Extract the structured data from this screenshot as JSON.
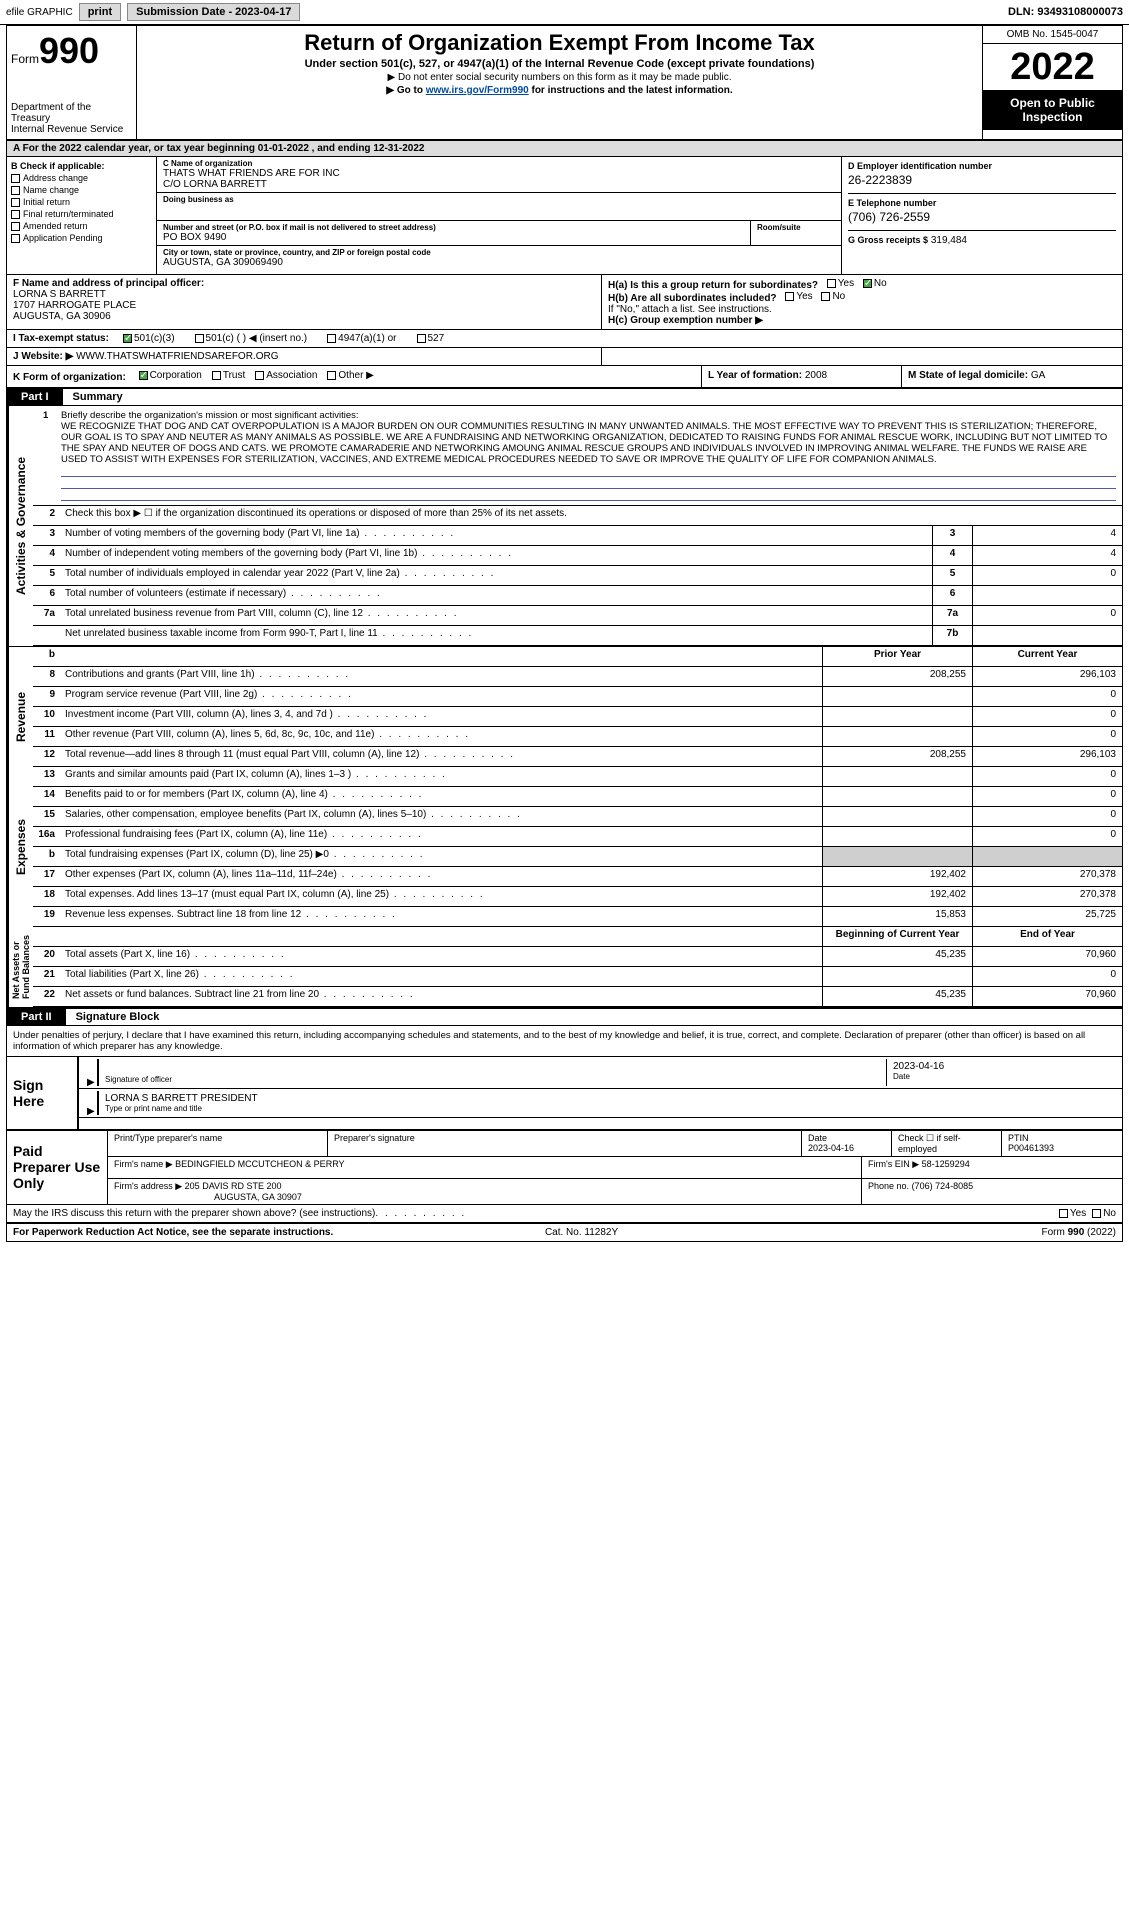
{
  "topbar": {
    "efile": "efile GRAPHIC",
    "print": "print",
    "subdate_lbl": "Submission Date - 2023-04-17",
    "dln": "DLN: 93493108000073"
  },
  "header": {
    "form_prefix": "Form",
    "form_num": "990",
    "dept": "Department of the Treasury\nInternal Revenue Service",
    "title": "Return of Organization Exempt From Income Tax",
    "sub": "Under section 501(c), 527, or 4947(a)(1) of the Internal Revenue Code (except private foundations)",
    "note1": "▶ Do not enter social security numbers on this form as it may be made public.",
    "note2_pre": "▶ Go to ",
    "note2_link": "www.irs.gov/Form990",
    "note2_post": " for instructions and the latest information.",
    "omb": "OMB No. 1545-0047",
    "year": "2022",
    "open": "Open to Public Inspection"
  },
  "secA": "A For the 2022 calendar year, or tax year beginning 01-01-2022   , and ending 12-31-2022",
  "boxB": {
    "label": "B Check if applicable:",
    "items": [
      "Address change",
      "Name change",
      "Initial return",
      "Final return/terminated",
      "Amended return",
      "Application Pending"
    ]
  },
  "boxC": {
    "name_lbl": "C Name of organization",
    "name": "THATS WHAT FRIENDS ARE FOR INC",
    "care": "C/O LORNA BARRETT",
    "dba_lbl": "Doing business as",
    "addr_lbl": "Number and street (or P.O. box if mail is not delivered to street address)",
    "addr": "PO BOX 9490",
    "suite_lbl": "Room/suite",
    "city_lbl": "City or town, state or province, country, and ZIP or foreign postal code",
    "city": "AUGUSTA, GA  309069490"
  },
  "boxD": {
    "lbl": "D Employer identification number",
    "val": "26-2223839"
  },
  "boxE": {
    "lbl": "E Telephone number",
    "val": "(706) 726-2559"
  },
  "boxG": {
    "lbl": "G Gross receipts $",
    "val": "319,484"
  },
  "boxF": {
    "lbl": "F  Name and address of principal officer:",
    "name": "LORNA S BARRETT",
    "addr1": "1707 HARROGATE PLACE",
    "addr2": "AUGUSTA, GA  30906"
  },
  "boxH": {
    "a": "H(a)  Is this a group return for subordinates?",
    "b": "H(b)  Are all subordinates included?",
    "b_note": "If \"No,\" attach a list. See instructions.",
    "c": "H(c)  Group exemption number ▶",
    "yes": "Yes",
    "no": "No"
  },
  "rowI": {
    "lbl": "I   Tax-exempt status:",
    "opts": [
      "501(c)(3)",
      "501(c) (  ) ◀ (insert no.)",
      "4947(a)(1) or",
      "527"
    ]
  },
  "rowJ": {
    "lbl": "J   Website: ▶",
    "val": "WWW.THATSWHATFRIENDSAREFOR.ORG"
  },
  "rowK": {
    "lbl": "K Form of organization:",
    "opts": [
      "Corporation",
      "Trust",
      "Association",
      "Other ▶"
    ]
  },
  "rowL": {
    "lbl": "L Year of formation:",
    "val": "2008"
  },
  "rowM": {
    "lbl": "M State of legal domicile:",
    "val": "GA"
  },
  "part1": {
    "tab": "Part I",
    "title": "Summary"
  },
  "mission": {
    "num": "1",
    "lbl": "Briefly describe the organization's mission or most significant activities:",
    "text": "WE RECOGNIZE THAT DOG AND CAT OVERPOPULATION IS A MAJOR BURDEN ON OUR COMMUNITIES RESULTING IN MANY UNWANTED ANIMALS. THE MOST EFFECTIVE WAY TO PREVENT THIS IS STERILIZATION; THEREFORE, OUR GOAL IS TO SPAY AND NEUTER AS MANY ANIMALS AS POSSIBLE. WE ARE A FUNDRAISING AND NETWORKING ORGANIZATION, DEDICATED TO RAISING FUNDS FOR ANIMAL RESCUE WORK, INCLUDING BUT NOT LIMITED TO THE SPAY AND NEUTER OF DOGS AND CATS. WE PROMOTE CAMARADERIE AND NETWORKING AMOUNG ANIMAL RESCUE GROUPS AND INDIVIDUALS INVOLVED IN IMPROVING ANIMAL WELFARE. THE FUNDS WE RAISE ARE USED TO ASSIST WITH EXPENSES FOR STERILIZATION, VACCINES, AND EXTREME MEDICAL PROCEDURES NEEDED TO SAVE OR IMPROVE THE QUALITY OF LIFE FOR COMPANION ANIMALS."
  },
  "line2": "Check this box ▶ ☐ if the organization discontinued its operations or disposed of more than 25% of its net assets.",
  "small_rows": [
    {
      "n": "3",
      "d": "Number of voting members of the governing body (Part VI, line 1a)",
      "c": "3",
      "v": "4"
    },
    {
      "n": "4",
      "d": "Number of independent voting members of the governing body (Part VI, line 1b)",
      "c": "4",
      "v": "4"
    },
    {
      "n": "5",
      "d": "Total number of individuals employed in calendar year 2022 (Part V, line 2a)",
      "c": "5",
      "v": "0"
    },
    {
      "n": "6",
      "d": "Total number of volunteers (estimate if necessary)",
      "c": "6",
      "v": ""
    },
    {
      "n": "7a",
      "d": "Total unrelated business revenue from Part VIII, column (C), line 12",
      "c": "7a",
      "v": "0"
    },
    {
      "n": "",
      "d": "Net unrelated business taxable income from Form 990-T, Part I, line 11",
      "c": "7b",
      "v": ""
    }
  ],
  "col_hdrs": {
    "prior": "Prior Year",
    "current": "Current Year"
  },
  "rev_rows": [
    {
      "n": "8",
      "d": "Contributions and grants (Part VIII, line 1h)",
      "p": "208,255",
      "c": "296,103"
    },
    {
      "n": "9",
      "d": "Program service revenue (Part VIII, line 2g)",
      "p": "",
      "c": "0"
    },
    {
      "n": "10",
      "d": "Investment income (Part VIII, column (A), lines 3, 4, and 7d )",
      "p": "",
      "c": "0"
    },
    {
      "n": "11",
      "d": "Other revenue (Part VIII, column (A), lines 5, 6d, 8c, 9c, 10c, and 11e)",
      "p": "",
      "c": "0"
    },
    {
      "n": "12",
      "d": "Total revenue—add lines 8 through 11 (must equal Part VIII, column (A), line 12)",
      "p": "208,255",
      "c": "296,103"
    }
  ],
  "exp_rows": [
    {
      "n": "13",
      "d": "Grants and similar amounts paid (Part IX, column (A), lines 1–3 )",
      "p": "",
      "c": "0"
    },
    {
      "n": "14",
      "d": "Benefits paid to or for members (Part IX, column (A), line 4)",
      "p": "",
      "c": "0"
    },
    {
      "n": "15",
      "d": "Salaries, other compensation, employee benefits (Part IX, column (A), lines 5–10)",
      "p": "",
      "c": "0"
    },
    {
      "n": "16a",
      "d": "Professional fundraising fees (Part IX, column (A), line 11e)",
      "p": "",
      "c": "0"
    },
    {
      "n": "b",
      "d": "Total fundraising expenses (Part IX, column (D), line 25) ▶0",
      "p": "GRAY",
      "c": "GRAY"
    },
    {
      "n": "17",
      "d": "Other expenses (Part IX, column (A), lines 11a–11d, 11f–24e)",
      "p": "192,402",
      "c": "270,378"
    },
    {
      "n": "18",
      "d": "Total expenses. Add lines 13–17 (must equal Part IX, column (A), line 25)",
      "p": "192,402",
      "c": "270,378"
    },
    {
      "n": "19",
      "d": "Revenue less expenses. Subtract line 18 from line 12",
      "p": "15,853",
      "c": "25,725"
    }
  ],
  "na_hdrs": {
    "begin": "Beginning of Current Year",
    "end": "End of Year"
  },
  "na_rows": [
    {
      "n": "20",
      "d": "Total assets (Part X, line 16)",
      "p": "45,235",
      "c": "70,960"
    },
    {
      "n": "21",
      "d": "Total liabilities (Part X, line 26)",
      "p": "",
      "c": "0"
    },
    {
      "n": "22",
      "d": "Net assets or fund balances. Subtract line 21 from line 20",
      "p": "45,235",
      "c": "70,960"
    }
  ],
  "side_labels": {
    "ag": "Activities & Governance",
    "rev": "Revenue",
    "exp": "Expenses",
    "na": "Net Assets or\nFund Balances"
  },
  "part2": {
    "tab": "Part II",
    "title": "Signature Block"
  },
  "penalty": "Under penalties of perjury, I declare that I have examined this return, including accompanying schedules and statements, and to the best of my knowledge and belief, it is true, correct, and complete. Declaration of preparer (other than officer) is based on all information of which preparer has any knowledge.",
  "sign": {
    "here": "Sign Here",
    "sig_lbl": "Signature of officer",
    "date": "2023-04-16",
    "date_lbl": "Date",
    "name_lbl": "Type or print name and title",
    "name": "LORNA S BARRETT PRESIDENT"
  },
  "prep": {
    "label": "Paid Preparer Use Only",
    "pt_name_lbl": "Print/Type preparer's name",
    "sig_lbl": "Preparer's signature",
    "date_lbl": "Date",
    "date": "2023-04-16",
    "check_lbl": "Check ☐ if self-employed",
    "ptin_lbl": "PTIN",
    "ptin": "P00461393",
    "firm_name_lbl": "Firm's name    ▶",
    "firm_name": "BEDINGFIELD MCCUTCHEON & PERRY",
    "firm_ein_lbl": "Firm's EIN ▶",
    "firm_ein": "58-1259294",
    "firm_addr_lbl": "Firm's address ▶",
    "firm_addr1": "205 DAVIS RD STE 200",
    "firm_addr2": "AUGUSTA, GA  30907",
    "phone_lbl": "Phone no.",
    "phone": "(706) 724-8085"
  },
  "discuss": "May the IRS discuss this return with the preparer shown above? (see instructions)",
  "footer": {
    "left": "For Paperwork Reduction Act Notice, see the separate instructions.",
    "mid": "Cat. No. 11282Y",
    "right": "Form 990 (2022)"
  }
}
